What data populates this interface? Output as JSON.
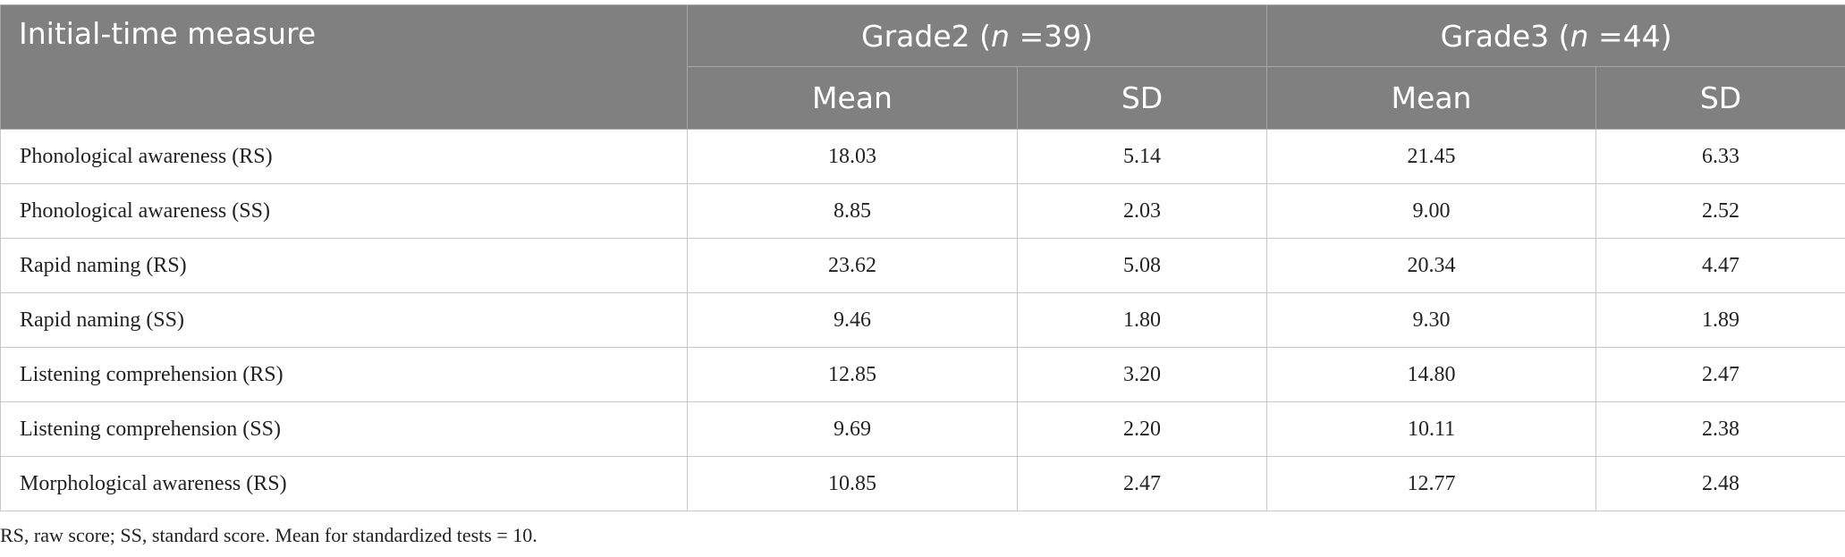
{
  "table": {
    "header": {
      "measure": "Initial-time measure",
      "groups": [
        [
          "Grade2 (",
          "n",
          " =39)"
        ],
        [
          "Grade3 (",
          "n",
          " =44)"
        ]
      ],
      "subheaders": [
        "Mean",
        "SD",
        "Mean",
        "SD"
      ]
    },
    "rows": [
      [
        "Phonological awareness (RS)",
        "18.03",
        "5.14",
        "21.45",
        "6.33"
      ],
      [
        "Phonological awareness (SS)",
        "8.85",
        "2.03",
        "9.00",
        "2.52"
      ],
      [
        "Rapid naming (RS)",
        "23.62",
        "5.08",
        "20.34",
        "4.47"
      ],
      [
        "Rapid naming (SS)",
        "9.46",
        "1.80",
        "9.30",
        "1.89"
      ],
      [
        "Listening comprehension (RS)",
        "12.85",
        "3.20",
        "14.80",
        "2.47"
      ],
      [
        "Listening comprehension (SS)",
        "9.69",
        "2.20",
        "10.11",
        "2.38"
      ],
      [
        "Morphological awareness (RS)",
        "10.85",
        "2.47",
        "12.77",
        "2.48"
      ]
    ],
    "footnote": "RS, raw score; SS, standard score. Mean for standardized tests = 10."
  }
}
